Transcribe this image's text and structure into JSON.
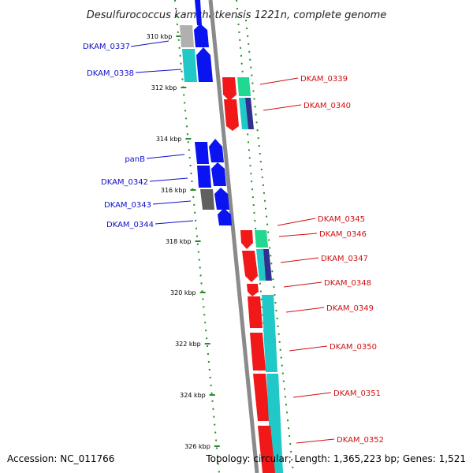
{
  "title": "Desulfurococcus kamchatkensis 1221n, complete genome",
  "footer": {
    "accession": "Accession: NC_011766",
    "summary": "Topology: circular; Length: 1,365,223 bp; Genes: 1,521"
  },
  "colors": {
    "forward_label": "#1010c8",
    "reverse_label": "#d01010",
    "tick": "#2a8a2a",
    "backbone": "#8a8a8a",
    "forward_gene": "#0a14f0",
    "reverse_gene": "#f01818",
    "cyan": "#20c8c8",
    "green": "#20d890",
    "gray_gene": "#808080",
    "navy": "#303090"
  },
  "ticks": [
    {
      "kbp": 310,
      "label": "310 kbp"
    },
    {
      "kbp": 312,
      "label": "312 kbp"
    },
    {
      "kbp": 314,
      "label": "314 kbp"
    },
    {
      "kbp": 316,
      "label": "316 kbp"
    },
    {
      "kbp": 318,
      "label": "318 kbp"
    },
    {
      "kbp": 320,
      "label": "320 kbp"
    },
    {
      "kbp": 322,
      "label": "322 kbp"
    },
    {
      "kbp": 324,
      "label": "324 kbp"
    },
    {
      "kbp": 326,
      "label": "326 kbp"
    }
  ],
  "genes": {
    "forward": [
      "DKAM_0337",
      "DKAM_0338",
      "panB",
      "DKAM_0342",
      "DKAM_0343",
      "DKAM_0344"
    ],
    "reverse": [
      "DKAM_0339",
      "DKAM_0340",
      "DKAM_0345",
      "DKAM_0346",
      "DKAM_0347",
      "DKAM_0348",
      "DKAM_0349",
      "DKAM_0350",
      "DKAM_0351",
      "DKAM_0352"
    ]
  }
}
